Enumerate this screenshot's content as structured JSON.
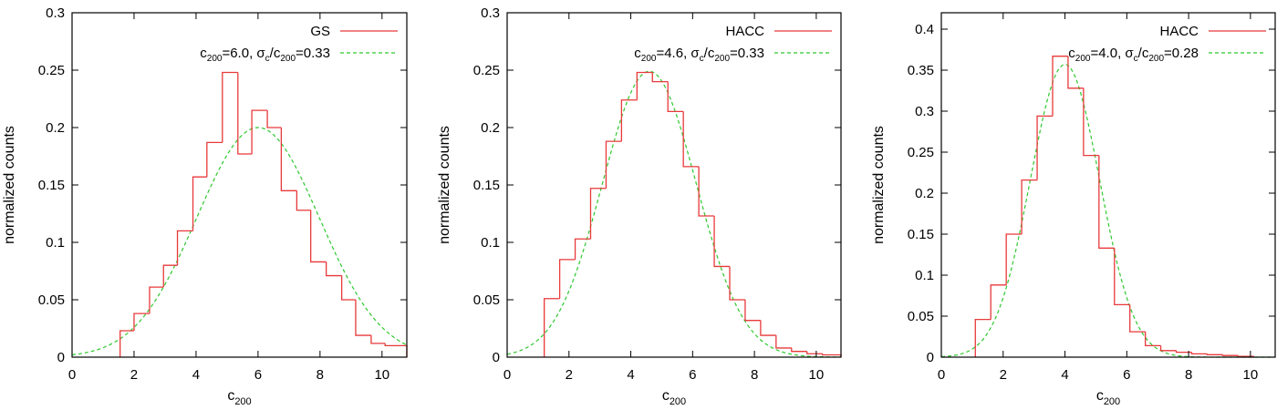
{
  "colors": {
    "histogram": "#e8393a",
    "fit": "#2ec82e",
    "axis": "#000000"
  },
  "chart_data": [
    {
      "type": "histogram-with-fit",
      "xlabel": "c",
      "xlabel_sub": "200",
      "ylabel": "normalized counts",
      "xlim": [
        0,
        10.8
      ],
      "ylim": [
        0,
        0.3
      ],
      "xticks": [
        0,
        2,
        4,
        6,
        8,
        10
      ],
      "yticks": [
        0,
        0.05,
        0.1,
        0.15,
        0.2,
        0.25,
        0.3
      ],
      "ytick_labels": [
        "0",
        "0.05",
        "0.1",
        "0.15",
        "0.2",
        "0.25",
        "0.3"
      ],
      "legend": {
        "histogram_label": "GS",
        "fit_label_parts": [
          "c",
          "200",
          "=6.0, σ",
          "c",
          "/c",
          "200",
          "=0.33"
        ]
      },
      "histogram": {
        "name": "GS",
        "edges": [
          1.55,
          2.0,
          2.5,
          2.95,
          3.4,
          3.9,
          4.35,
          4.85,
          5.35,
          5.8,
          6.3,
          6.75,
          7.25,
          7.7,
          8.2,
          8.7,
          9.15,
          9.65,
          10.1,
          10.8
        ],
        "values": [
          0.023,
          0.038,
          0.061,
          0.08,
          0.11,
          0.157,
          0.187,
          0.248,
          0.177,
          0.215,
          0.2,
          0.145,
          0.128,
          0.083,
          0.071,
          0.05,
          0.019,
          0.012,
          0.01
        ]
      },
      "fit": {
        "name": "c200=6.0, σc/c200=0.33",
        "mean": 6.0,
        "sigma": 1.98,
        "amplitude": 0.2
      }
    },
    {
      "type": "histogram-with-fit",
      "xlabel": "c",
      "xlabel_sub": "200",
      "ylabel": "normalized counts",
      "xlim": [
        0,
        10.8
      ],
      "ylim": [
        0,
        0.3
      ],
      "xticks": [
        0,
        2,
        4,
        6,
        8,
        10
      ],
      "yticks": [
        0,
        0.05,
        0.1,
        0.15,
        0.2,
        0.25,
        0.3
      ],
      "ytick_labels": [
        "0",
        "0.05",
        "0.1",
        "0.15",
        "0.2",
        "0.25",
        "0.3"
      ],
      "legend": {
        "histogram_label": "HACC",
        "fit_label_parts": [
          "c",
          "200",
          "=4.6, σ",
          "c",
          "/c",
          "200",
          "=0.33"
        ]
      },
      "histogram": {
        "name": "HACC",
        "edges": [
          1.2,
          1.7,
          2.2,
          2.7,
          3.2,
          3.7,
          4.2,
          4.7,
          5.2,
          5.7,
          6.2,
          6.7,
          7.2,
          7.7,
          8.2,
          8.7,
          9.2,
          9.7,
          10.2,
          10.8
        ],
        "values": [
          0.051,
          0.085,
          0.103,
          0.147,
          0.188,
          0.224,
          0.248,
          0.24,
          0.214,
          0.166,
          0.123,
          0.079,
          0.05,
          0.032,
          0.019,
          0.008,
          0.005,
          0.003,
          0.002
        ]
      },
      "fit": {
        "name": "c200=4.6, σc/c200=0.33",
        "mean": 4.6,
        "sigma": 1.52,
        "amplitude": 0.249
      }
    },
    {
      "type": "histogram-with-fit",
      "xlabel": "c",
      "xlabel_sub": "200",
      "ylabel": "normalized counts",
      "xlim": [
        0,
        10.8
      ],
      "ylim": [
        0,
        0.42
      ],
      "xticks": [
        0,
        2,
        4,
        6,
        8,
        10
      ],
      "yticks": [
        0,
        0.05,
        0.1,
        0.15,
        0.2,
        0.25,
        0.3,
        0.35,
        0.4
      ],
      "ytick_labels": [
        "0",
        "0.05",
        "0.1",
        "0.15",
        "0.2",
        "0.25",
        "0.3",
        "0.35",
        "0.4"
      ],
      "legend": {
        "histogram_label": "HACC",
        "fit_label_parts": [
          "c",
          "200",
          "=4.0, σ",
          "c",
          "/c",
          "200",
          "=0.28"
        ]
      },
      "histogram": {
        "name": "HACC",
        "edges": [
          1.1,
          1.6,
          2.1,
          2.6,
          3.1,
          3.6,
          4.1,
          4.6,
          5.1,
          5.6,
          6.1,
          6.6,
          7.1,
          7.6,
          8.1,
          8.6,
          9.1,
          9.6,
          10.1
        ],
        "values": [
          0.046,
          0.088,
          0.15,
          0.216,
          0.294,
          0.367,
          0.328,
          0.246,
          0.133,
          0.064,
          0.031,
          0.014,
          0.008,
          0.006,
          0.004,
          0.003,
          0.002,
          0.001
        ]
      },
      "fit": {
        "name": "c200=4.0, σc/c200=0.28",
        "mean": 4.0,
        "sigma": 1.12,
        "amplitude": 0.357
      }
    }
  ]
}
